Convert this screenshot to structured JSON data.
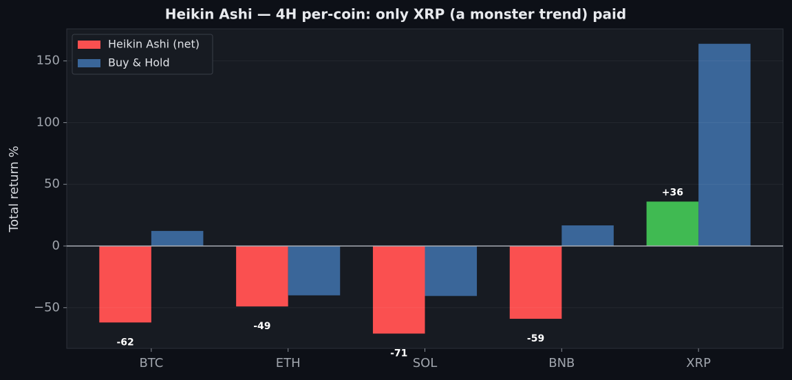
{
  "chart_data": {
    "type": "bar",
    "title": "Heikin Ashi — 4H per-coin: only XRP (a monster trend) paid",
    "y_label": "Total return %",
    "categories": [
      "BTC",
      "ETH",
      "SOL",
      "BNB",
      "XRP"
    ],
    "series": [
      {
        "name": "Heikin Ashi (net)",
        "color": "#fa5050",
        "colors": [
          "#fa5050",
          "#fa5050",
          "#fa5050",
          "#fa5050",
          "#40ba52"
        ],
        "values": [
          -62,
          -49,
          -71,
          -59,
          36
        ],
        "value_labels": [
          "-62",
          "-49",
          "-71",
          "-59",
          "+36"
        ]
      },
      {
        "name": "Buy & Hold",
        "color": "#3a6699",
        "values": [
          12.2,
          -40,
          -40.5,
          16.7,
          163.9
        ]
      }
    ],
    "ylim": [
      -83,
      176
    ],
    "yticks": [
      {
        "value": -50,
        "label": "−50"
      },
      0,
      50,
      100,
      150
    ],
    "grid": true,
    "legend": "upper left"
  }
}
